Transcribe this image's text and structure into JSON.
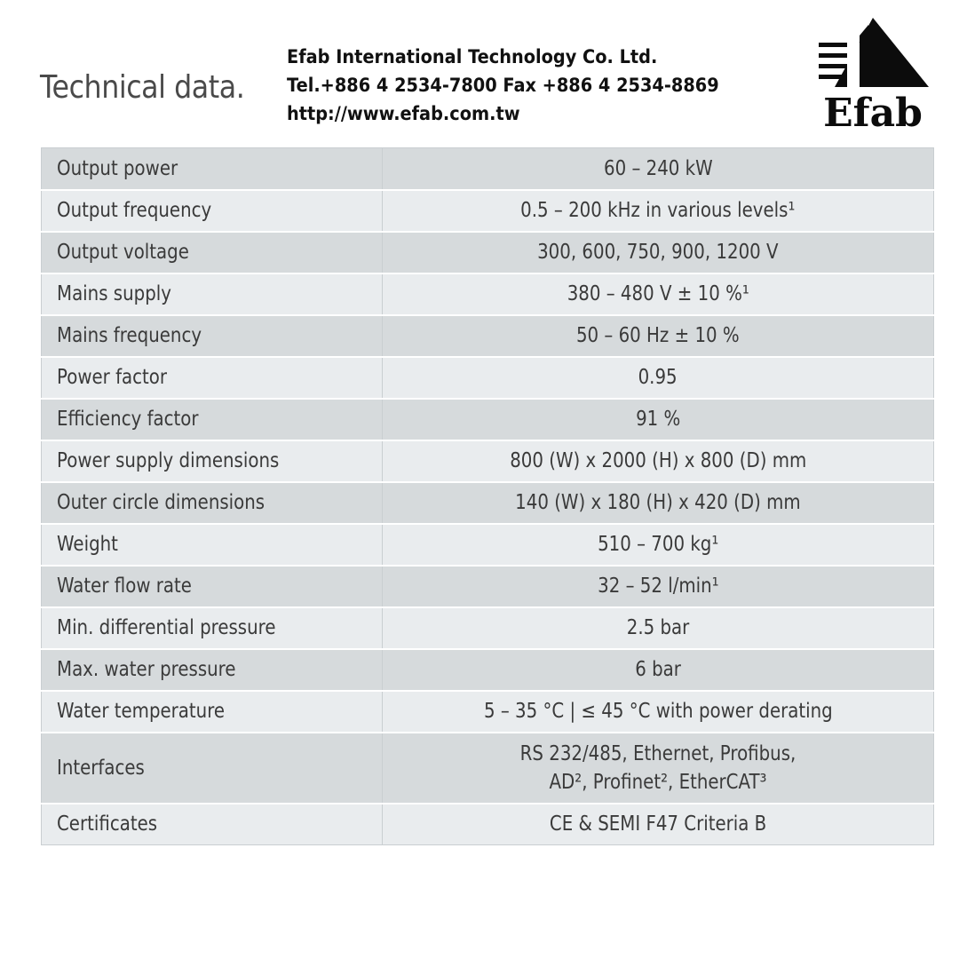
{
  "page": {
    "title": "Technical data."
  },
  "company": {
    "name": "Efab International Technology Co. Ltd.",
    "contact": "Tel.+886 4 2534-7800 Fax +886 4 2534-8869",
    "website": "http://www.efab.com.tw",
    "logo_text": "Efab"
  },
  "colors": {
    "row_dark": "#d6dadc",
    "row_light": "#e9ecee",
    "text": "#3a3a3a"
  },
  "specs": [
    {
      "label": "Output power",
      "value": "60 – 240 kW"
    },
    {
      "label": "Output frequency",
      "value": "0.5 – 200 kHz in various levels¹"
    },
    {
      "label": "Output voltage",
      "value": "300, 600, 750, 900, 1200 V"
    },
    {
      "label": "Mains supply",
      "value": "380 – 480 V ± 10 %¹"
    },
    {
      "label": "Mains frequency",
      "value": "50 – 60 Hz ± 10 %"
    },
    {
      "label": "Power factor",
      "value": "0.95"
    },
    {
      "label": "Efficiency factor",
      "value": "91 %"
    },
    {
      "label": "Power supply dimensions",
      "value": "800 (W) x 2000 (H) x 800 (D) mm"
    },
    {
      "label": "Outer circle dimensions",
      "value": "140 (W) x 180 (H) x 420 (D) mm"
    },
    {
      "label": "Weight",
      "value": "510 – 700 kg¹"
    },
    {
      "label": "Water flow rate",
      "value": "32 – 52 l/min¹"
    },
    {
      "label": "Min. differential pressure",
      "value": "2.5 bar"
    },
    {
      "label": "Max. water pressure",
      "value": "6 bar"
    },
    {
      "label": "Water temperature",
      "value": "5 – 35 °C | ≤ 45 °C with power derating"
    },
    {
      "label": "Interfaces",
      "value_line1": "RS 232/485, Ethernet, Profibus,",
      "value_line2": "AD², Profinet², EtherCAT³"
    },
    {
      "label": "Certificates",
      "value": "CE & SEMI F47 Criteria B"
    }
  ]
}
